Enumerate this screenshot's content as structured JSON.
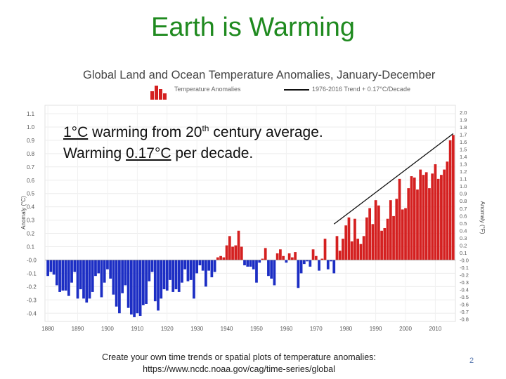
{
  "slide": {
    "title": "Earth is Warming",
    "footer_line1": "Create your own time trends or spatial plots of temperature anomalies:",
    "footer_line2": "https://www.ncdc.noaa.gov/cag/time-series/global",
    "page_number": "2"
  },
  "overlay": {
    "part1": "1°C",
    "part2": " warming from 20",
    "sup": "th",
    "part3": " century average.",
    "part4": "Warming ",
    "part5": "0.17°C",
    "part6": " per decade."
  },
  "chart_data": {
    "type": "bar",
    "title": "Global Land and Ocean Temperature Anomalies, January-December",
    "legend_bars": "Temperature Anomalies",
    "legend_trend": "1976-2016 Trend + 0.17°C/Decade",
    "ylabel": "Anomaly (°C)",
    "y2label": "Anomaly (°F)",
    "ylim": [
      -0.45,
      1.15
    ],
    "y_ticks": [
      "1.1",
      "1.0",
      "0.9",
      "0.8",
      "0.7",
      "0.6",
      "0.5",
      "0.4",
      "0.3",
      "0.2",
      "0.1",
      "-0.0",
      "-0.1",
      "-0.2",
      "-0.3",
      "-0.4"
    ],
    "y2_ticks": [
      "2.0",
      "1.9",
      "1.8",
      "1.7",
      "1.6",
      "1.5",
      "1.4",
      "1.3",
      "1.2",
      "1.1",
      "1.0",
      "0.9",
      "0.8",
      "0.7",
      "0.6",
      "0.5",
      "0.4",
      "0.3",
      "0.2",
      "0.1",
      "-0.0",
      "-0.1",
      "-0.2",
      "-0.3",
      "-0.4",
      "-0.5",
      "-0.6",
      "-0.7",
      "-0.8"
    ],
    "x_ticks": [
      "1880",
      "1890",
      "1900",
      "1910",
      "1920",
      "1930",
      "1940",
      "1950",
      "1960",
      "1970",
      "1980",
      "1990",
      "2000",
      "2010"
    ],
    "positive_color": "#d42020",
    "negative_color": "#1c2ec4",
    "years": [
      1880,
      1881,
      1882,
      1883,
      1884,
      1885,
      1886,
      1887,
      1888,
      1889,
      1890,
      1891,
      1892,
      1893,
      1894,
      1895,
      1896,
      1897,
      1898,
      1899,
      1900,
      1901,
      1902,
      1903,
      1904,
      1905,
      1906,
      1907,
      1908,
      1909,
      1910,
      1911,
      1912,
      1913,
      1914,
      1915,
      1916,
      1917,
      1918,
      1919,
      1920,
      1921,
      1922,
      1923,
      1924,
      1925,
      1926,
      1927,
      1928,
      1929,
      1930,
      1931,
      1932,
      1933,
      1934,
      1935,
      1936,
      1937,
      1938,
      1939,
      1940,
      1941,
      1942,
      1943,
      1944,
      1945,
      1946,
      1947,
      1948,
      1949,
      1950,
      1951,
      1952,
      1953,
      1954,
      1955,
      1956,
      1957,
      1958,
      1959,
      1960,
      1961,
      1962,
      1963,
      1964,
      1965,
      1966,
      1967,
      1968,
      1969,
      1970,
      1971,
      1972,
      1973,
      1974,
      1975,
      1976,
      1977,
      1978,
      1979,
      1980,
      1981,
      1982,
      1983,
      1984,
      1985,
      1986,
      1987,
      1988,
      1989,
      1990,
      1991,
      1992,
      1993,
      1994,
      1995,
      1996,
      1997,
      1998,
      1999,
      2000,
      2001,
      2002,
      2003,
      2004,
      2005,
      2006,
      2007,
      2008,
      2009,
      2010,
      2011,
      2012,
      2013,
      2014,
      2015,
      2016
    ],
    "values": [
      -0.12,
      -0.09,
      -0.11,
      -0.19,
      -0.24,
      -0.23,
      -0.23,
      -0.27,
      -0.17,
      -0.09,
      -0.29,
      -0.22,
      -0.29,
      -0.32,
      -0.29,
      -0.24,
      -0.12,
      -0.1,
      -0.28,
      -0.17,
      -0.07,
      -0.14,
      -0.26,
      -0.35,
      -0.4,
      -0.25,
      -0.19,
      -0.36,
      -0.41,
      -0.43,
      -0.4,
      -0.42,
      -0.34,
      -0.33,
      -0.16,
      -0.09,
      -0.31,
      -0.38,
      -0.29,
      -0.22,
      -0.23,
      -0.15,
      -0.24,
      -0.22,
      -0.24,
      -0.17,
      -0.07,
      -0.16,
      -0.15,
      -0.29,
      -0.1,
      -0.04,
      -0.08,
      -0.2,
      -0.08,
      -0.13,
      -0.09,
      0.02,
      0.03,
      0.02,
      0.11,
      0.18,
      0.1,
      0.11,
      0.22,
      0.1,
      -0.04,
      -0.05,
      -0.05,
      -0.07,
      -0.17,
      -0.02,
      0.01,
      0.09,
      -0.12,
      -0.14,
      -0.19,
      0.05,
      0.08,
      0.03,
      -0.02,
      0.05,
      0.02,
      0.06,
      -0.21,
      -0.1,
      -0.03,
      -0.01,
      -0.05,
      0.08,
      0.03,
      -0.08,
      0.01,
      0.16,
      -0.07,
      -0.01,
      -0.1,
      0.18,
      0.07,
      0.16,
      0.26,
      0.32,
      0.14,
      0.31,
      0.16,
      0.12,
      0.18,
      0.32,
      0.39,
      0.27,
      0.45,
      0.41,
      0.22,
      0.24,
      0.31,
      0.45,
      0.33,
      0.46,
      0.61,
      0.38,
      0.39,
      0.54,
      0.63,
      0.62,
      0.53,
      0.68,
      0.64,
      0.66,
      0.54,
      0.65,
      0.72,
      0.61,
      0.64,
      0.68,
      0.74,
      0.9,
      0.94
    ]
  }
}
